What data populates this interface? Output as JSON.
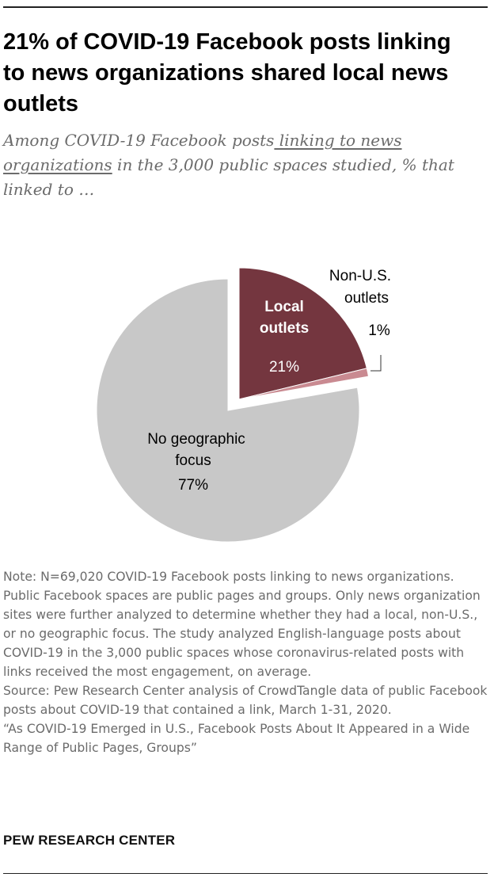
{
  "header": {
    "title": "21% of COVID-19 Facebook posts linking to news organizations shared local news outlets",
    "subtitle_before": "Among COVID-19 Facebook posts",
    "subtitle_link": " linking to news organizations",
    "subtitle_after": " in the 3,000 public spaces studied, % that linked to …"
  },
  "chart_data": {
    "type": "pie",
    "slices": [
      {
        "label_lines": [
          "Local",
          "outlets"
        ],
        "value": 21,
        "value_label": "21%",
        "color": "#74363f",
        "exploded": true
      },
      {
        "label_lines": [
          "Non-U.S.",
          "outlets"
        ],
        "value": 1,
        "value_label": "1%",
        "color": "#c98a91",
        "exploded": true
      },
      {
        "label_lines": [
          "No geographic",
          "focus"
        ],
        "value": 77,
        "value_label": "77%",
        "color": "#c8c8c8",
        "exploded": false
      }
    ]
  },
  "notes": {
    "note": "Note: N=69,020 COVID-19 Facebook posts linking to news organizations. Public Facebook spaces are public pages and groups. Only news organization sites were further analyzed to determine whether they had a local, non-U.S., or no geographic focus. The study analyzed English-language posts about COVID-19 in the 3,000 public spaces whose coronavirus-related posts with links received the most engagement, on average.",
    "source": "Source: Pew Research Center analysis of CrowdTangle data of public Facebook posts about COVID-19 that contained a link, March 1-31, 2020.",
    "report": "“As COVID-19 Emerged in U.S., Facebook Posts About It Appeared in a Wide Range of Public Pages, Groups”"
  },
  "brand": "PEW RESEARCH CENTER"
}
